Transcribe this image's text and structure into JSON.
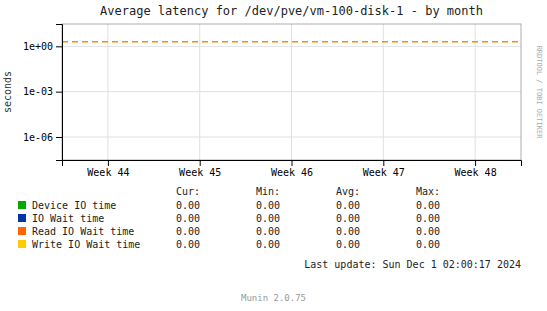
{
  "chart_data": {
    "type": "line",
    "title": "Average latency for /dev/pve/vm-100-disk-1 - by month",
    "y_label": "seconds",
    "categories": [
      "Week 44",
      "Week 45",
      "Week 46",
      "Week 47",
      "Week 48"
    ],
    "log": "y",
    "ylim": [
      3e-08,
      30
    ],
    "yticks": [
      {
        "value": 1e-06,
        "label": "1e-06"
      },
      {
        "value": 0.001,
        "label": "1e-03"
      },
      {
        "value": 1,
        "label": "1e+00"
      }
    ],
    "grid": true,
    "reference_line": {
      "value": 2.0,
      "color": "#ff8c00",
      "line_style": "dashed"
    },
    "stat_headers": [
      "Cur:",
      "Min:",
      "Avg:",
      "Max:"
    ],
    "series": [
      {
        "name": "Device IO time",
        "color": "#00aa00",
        "values": [
          null,
          null,
          null,
          null,
          null
        ],
        "stats": [
          {
            "value": 0,
            "label": "0.00"
          },
          {
            "value": 0,
            "label": "0.00"
          },
          {
            "value": 0,
            "label": "0.00"
          },
          {
            "value": 0,
            "label": "0.00"
          }
        ]
      },
      {
        "name": "IO Wait time",
        "color": "#0033aa",
        "values": [
          null,
          null,
          null,
          null,
          null
        ],
        "stats": [
          {
            "value": 0,
            "label": "0.00"
          },
          {
            "value": 0,
            "label": "0.00"
          },
          {
            "value": 0,
            "label": "0.00"
          },
          {
            "value": 0,
            "label": "0.00"
          }
        ]
      },
      {
        "name": "Read IO Wait time",
        "color": "#ff6600",
        "values": [
          null,
          null,
          null,
          null,
          null
        ],
        "stats": [
          {
            "value": 0,
            "label": "0.00"
          },
          {
            "value": 0,
            "label": "0.00"
          },
          {
            "value": 0,
            "label": "0.00"
          },
          {
            "value": 0,
            "label": "0.00"
          }
        ]
      },
      {
        "name": "Write IO Wait time",
        "color": "#ffcc00",
        "values": [
          null,
          null,
          null,
          null,
          null
        ],
        "stats": [
          {
            "value": 0,
            "label": "0.00"
          },
          {
            "value": 0,
            "label": "0.00"
          },
          {
            "value": 0,
            "label": "0.00"
          },
          {
            "value": 0,
            "label": "0.00"
          }
        ]
      }
    ],
    "annotations": [
      "Last update: Sun Dec  1 02:00:17 2024",
      "Munin 2.0.75",
      "RRDTOOL / TOBI OETIKER"
    ]
  }
}
